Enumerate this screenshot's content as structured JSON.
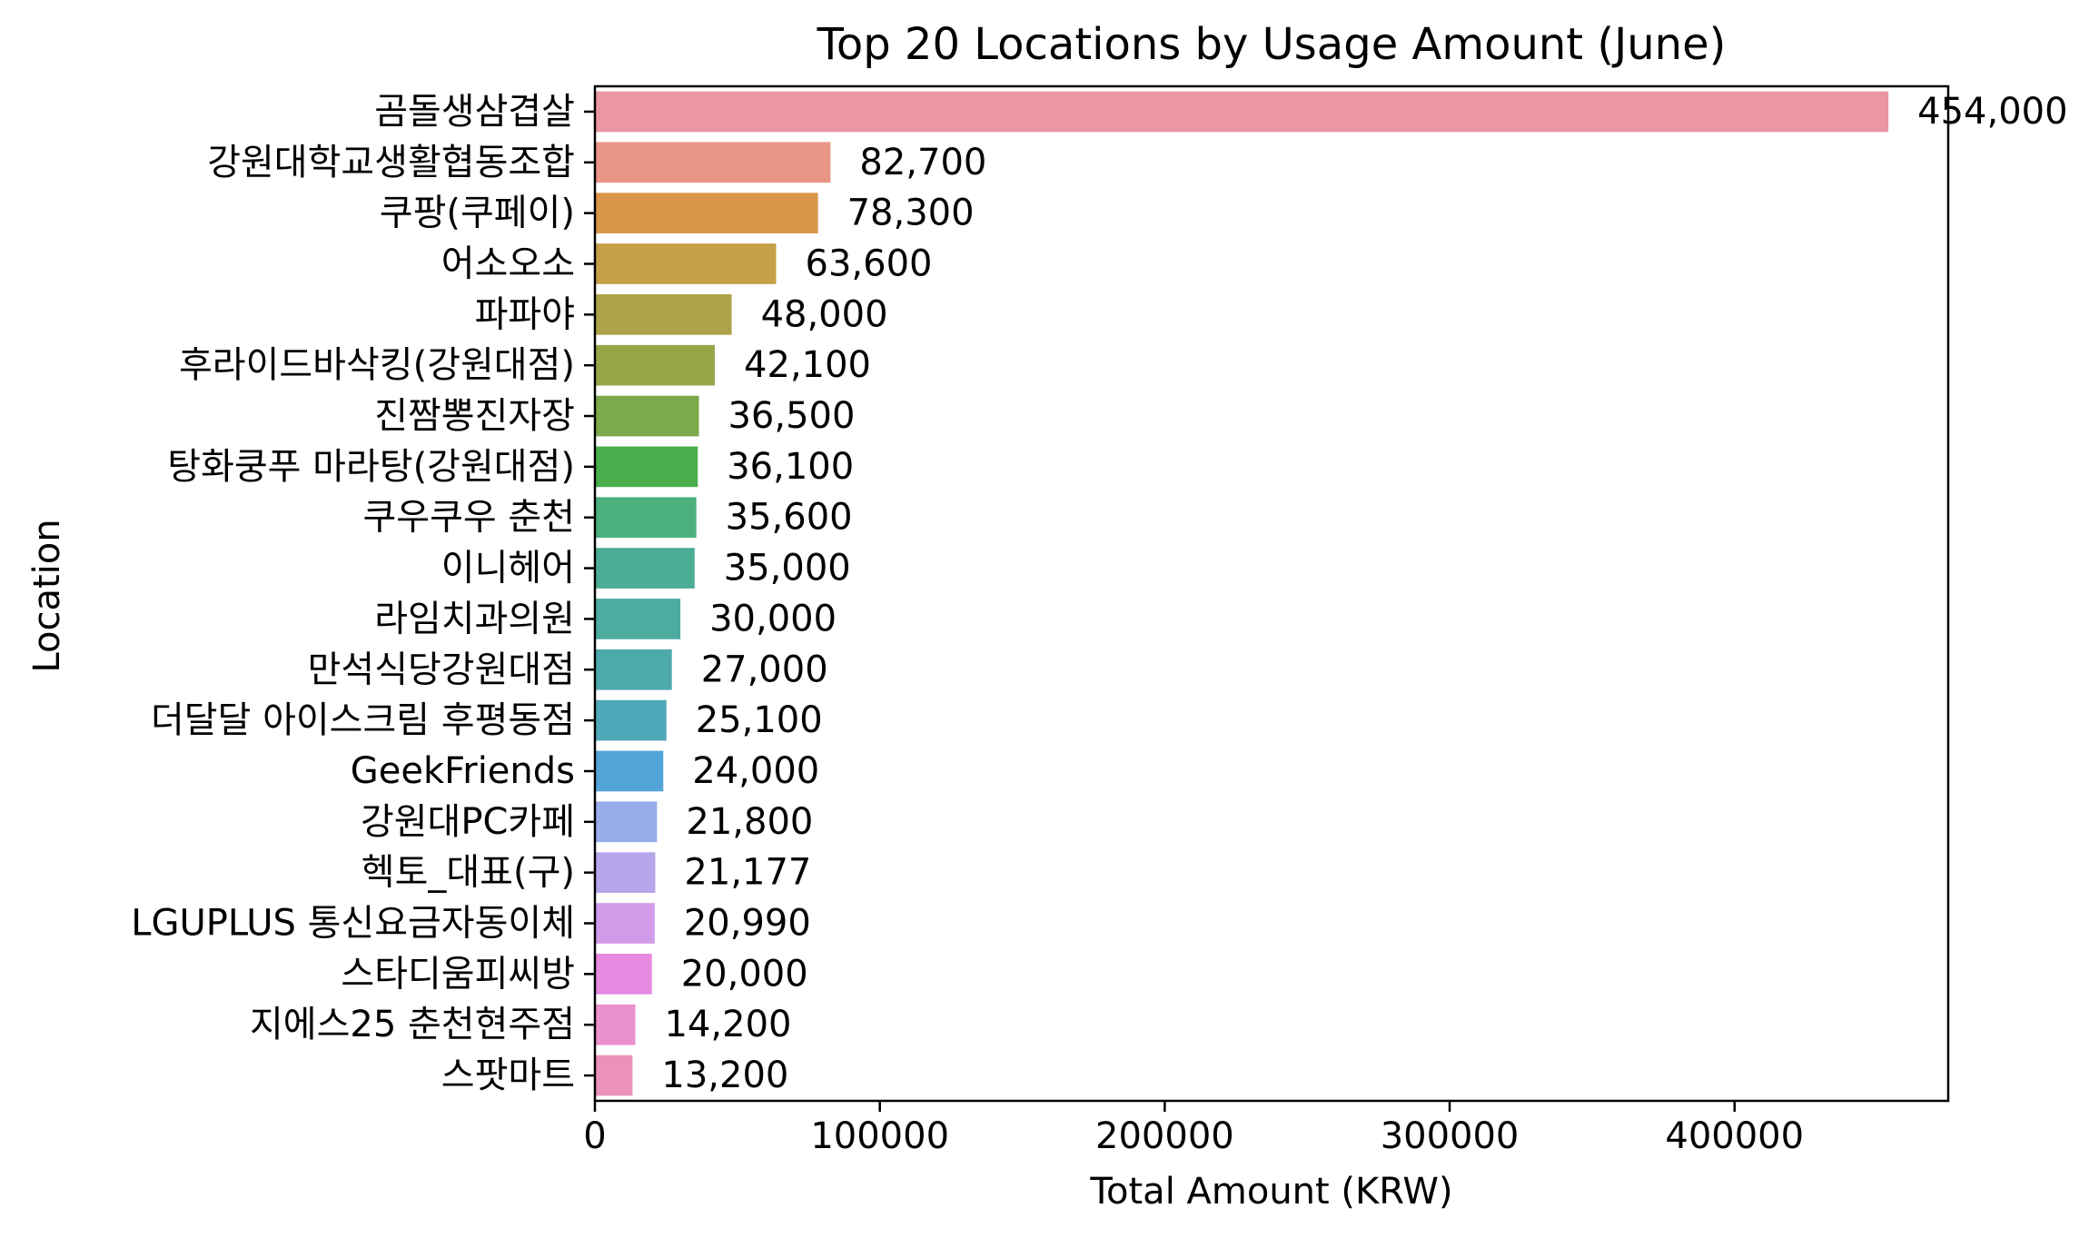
{
  "chart_data": {
    "type": "bar",
    "orientation": "horizontal",
    "title": "Top 20 Locations by Usage Amount (June)",
    "xlabel": "Total Amount (KRW)",
    "ylabel": "Location",
    "xlim": [
      0,
      475000
    ],
    "xticks": [
      0,
      100000,
      200000,
      300000,
      400000
    ],
    "xtick_labels": [
      "0",
      "100000",
      "200000",
      "300000",
      "400000"
    ],
    "grid": false,
    "categories": [
      "곰돌생삼겹살",
      "강원대학교생활협동조합",
      "쿠팡(쿠페이)",
      "어소오소",
      "파파야",
      "후라이드바삭킹(강원대점)",
      "진짬뽕진자장",
      "탕화쿵푸 마라탕(강원대점)",
      "쿠우쿠우 춘천",
      "이니헤어",
      "라임치과의원",
      "만석식당강원대점",
      "더달달 아이스크림 후평동점",
      "GeekFriends",
      "강원대PC카페",
      "헥토_대표(구)",
      "LGUPLUS 통신요금자동이체",
      "스타디움피씨방",
      "지에스25 춘천현주점",
      "스팟마트"
    ],
    "values": [
      454000,
      82700,
      78300,
      63600,
      48000,
      42100,
      36500,
      36100,
      35600,
      35000,
      30000,
      27000,
      25100,
      24000,
      21800,
      21177,
      20990,
      20000,
      14200,
      13200
    ],
    "value_labels": [
      "454,000",
      "82,700",
      "78,300",
      "63,600",
      "48,000",
      "42,100",
      "36,500",
      "36,100",
      "35,600",
      "35,000",
      "30,000",
      "27,000",
      "25,100",
      "24,000",
      "21,800",
      "21,177",
      "20,990",
      "20,000",
      "14,200",
      "13,200"
    ],
    "colors": [
      "#ea96a3",
      "#e99686",
      "#d99649",
      "#c5a049",
      "#aea249",
      "#97a549",
      "#7aaa49",
      "#4aae4c",
      "#4bb07e",
      "#4cad95",
      "#4dab9f",
      "#4ea9ab",
      "#4fa8b8",
      "#52a4d6",
      "#97acea",
      "#b6a5ea",
      "#d29be9",
      "#e68ae2",
      "#ea90cd",
      "#ea91bc"
    ]
  }
}
